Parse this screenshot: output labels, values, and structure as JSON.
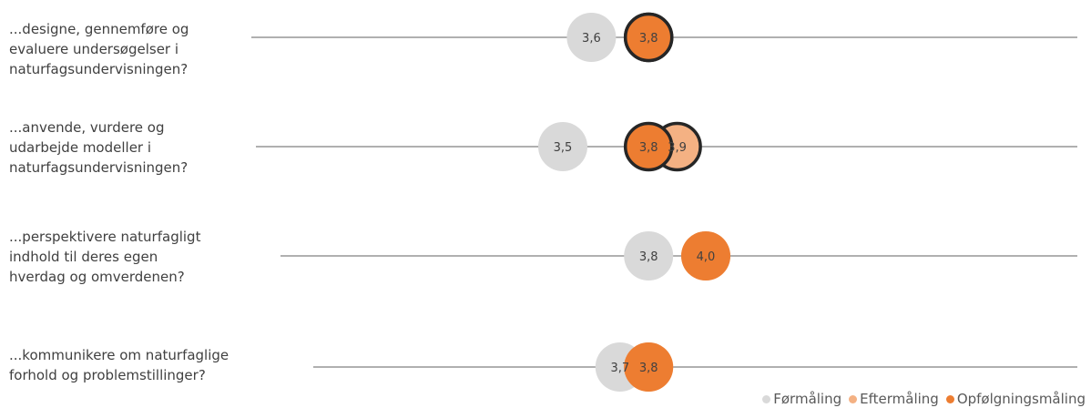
{
  "chart_data": {
    "type": "scatter",
    "categories": [
      "...designe, gennemføre og\nevaluere undersøgelser i\nnaturfagsundervisningen?",
      "...anvende, vurdere og\nudarbejde modeller i\nnaturfagsundervisningen?",
      "...perspektivere naturfagligt\nindhold til deres egen\nhverdag og omverdenen?",
      "...kommunikere om naturfaglige\nforhold og problemstillinger?"
    ],
    "series": [
      {
        "name": "Førmåling",
        "values": [
          3.6,
          3.5,
          3.8,
          3.7
        ],
        "labels": [
          "3,6",
          "3,5",
          "3,8",
          "3,7"
        ],
        "color": "#d9d9d9"
      },
      {
        "name": "Eftermåling",
        "values": [
          3.8,
          3.9,
          4.0,
          3.8
        ],
        "labels": [
          "",
          "3,9",
          "",
          ""
        ],
        "color": "#f4b183"
      },
      {
        "name": "Opfølgningsmåling",
        "values": [
          3.8,
          3.8,
          4.0,
          3.8
        ],
        "labels": [
          "3,8",
          "3,8",
          "4,0",
          "3,8"
        ],
        "color": "#ed7d31"
      }
    ],
    "highlight_outline": {
      "color": "#262626",
      "rows": [
        0,
        1
      ],
      "series": [
        "Eftermåling",
        "Opfølgningsmåling"
      ]
    },
    "line_color": "#808080",
    "legend_position": "bottom-right",
    "grid": false
  }
}
